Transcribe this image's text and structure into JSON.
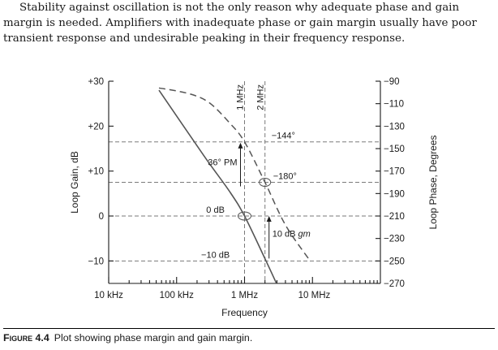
{
  "paragraph": {
    "line1": "Stability against oscillation is not the only reason why adequate phase and gain",
    "line2": "margin is needed. Amplifiers with inadequate phase or gain margin usually have poor",
    "line3": "transient response and undesirable peaking in their frequency response."
  },
  "chart_data": {
    "type": "line",
    "xlabel": "Frequency",
    "x_scale": "log",
    "x_ticks": [
      {
        "value": 10000,
        "label": "10 kHz"
      },
      {
        "value": 100000,
        "label": "100 kHz"
      },
      {
        "value": 1000000,
        "label": "1 MHz"
      },
      {
        "value": 10000000,
        "label": "10 MHz"
      }
    ],
    "y_left": {
      "label": "Loop Gain, dB",
      "range": [
        -15,
        30
      ],
      "ticks": [
        {
          "value": 30,
          "label": "+30"
        },
        {
          "value": 20,
          "label": "+20"
        },
        {
          "value": 10,
          "label": "+10"
        },
        {
          "value": 0,
          "label": "0"
        },
        {
          "value": -10,
          "label": "−10"
        }
      ]
    },
    "y_right": {
      "label": "Loop Phase, Degrees",
      "range": [
        -270,
        -90
      ],
      "ticks": [
        {
          "value": -90,
          "label": "−90"
        },
        {
          "value": -110,
          "label": "−110"
        },
        {
          "value": -130,
          "label": "−130"
        },
        {
          "value": -150,
          "label": "−150"
        },
        {
          "value": -170,
          "label": "−170"
        },
        {
          "value": -190,
          "label": "−190"
        },
        {
          "value": -210,
          "label": "−210"
        },
        {
          "value": -230,
          "label": "−230"
        },
        {
          "value": -250,
          "label": "−250"
        },
        {
          "value": -270,
          "label": "−270"
        }
      ]
    },
    "vertical_markers": [
      {
        "x": 1000000,
        "label": "1 MHz"
      },
      {
        "x": 2000000,
        "label": "2 MHz"
      }
    ],
    "gain_curve": [
      {
        "x": 55000,
        "y": 28.0
      },
      {
        "x": 250000,
        "y": 13.5
      },
      {
        "x": 600000,
        "y": 5.5
      },
      {
        "x": 1000000,
        "y": 0.0
      },
      {
        "x": 2000000,
        "y": -9.5
      },
      {
        "x": 2950000,
        "y": -15.0
      }
    ],
    "phase_curve": [
      {
        "x": 55000,
        "y": -96
      },
      {
        "x": 150000,
        "y": -101
      },
      {
        "x": 300000,
        "y": -109
      },
      {
        "x": 600000,
        "y": -127
      },
      {
        "x": 1000000,
        "y": -144
      },
      {
        "x": 2000000,
        "y": -180
      },
      {
        "x": 4000000,
        "y": -218
      },
      {
        "x": 9000000,
        "y": -249
      }
    ],
    "reference_lines": [
      {
        "axis": "left",
        "y": 0,
        "label": "0 dB"
      },
      {
        "axis": "left",
        "y": -10,
        "label": "−10 dB"
      },
      {
        "axis": "right",
        "y": -144,
        "label": "−144°"
      },
      {
        "axis": "right",
        "y": -180,
        "label": "−180°"
      }
    ],
    "annotations": {
      "phase_margin": "36° PM",
      "gain_margin_prefix": "10 dB ",
      "gain_margin_suffix": "gm"
    },
    "grid": "dashed reference lines only"
  },
  "caption": {
    "label": "Figure 4.4",
    "text": "Plot showing phase margin and gain margin."
  }
}
